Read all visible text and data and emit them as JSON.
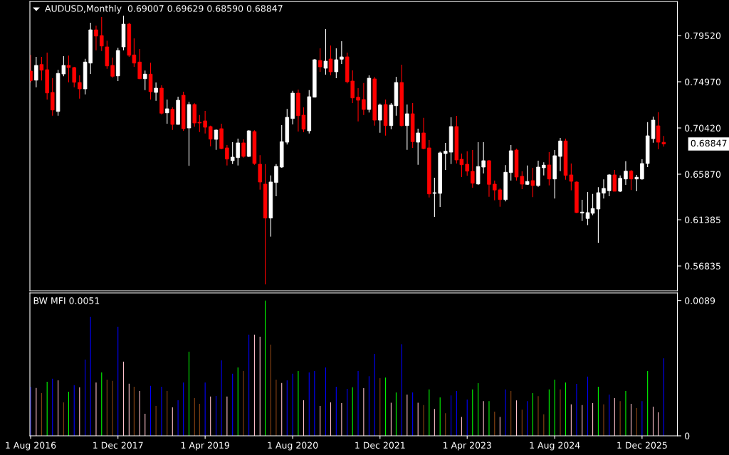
{
  "chart_data": [
    {
      "type": "candlestick",
      "title": "AUDUSD,Monthly  0.69007 0.69629 0.68590 0.68847",
      "x": [
        "2016-08",
        "2016-09",
        "2016-10",
        "2016-11",
        "2016-12",
        "2017-01",
        "2017-02",
        "2017-03",
        "2017-04",
        "2017-05",
        "2017-06",
        "2017-07",
        "2017-08",
        "2017-09",
        "2017-10",
        "2017-11",
        "2017-12",
        "2018-01",
        "2018-02",
        "2018-03",
        "2018-04",
        "2018-05",
        "2018-06",
        "2018-07",
        "2018-08",
        "2018-09",
        "2018-10",
        "2018-11",
        "2018-12",
        "2019-01",
        "2019-02",
        "2019-03",
        "2019-04",
        "2019-05",
        "2019-06",
        "2019-07",
        "2019-08",
        "2019-09",
        "2019-10",
        "2019-11",
        "2019-12",
        "2020-01",
        "2020-02",
        "2020-03",
        "2020-04",
        "2020-05",
        "2020-06",
        "2020-07",
        "2020-08",
        "2020-09",
        "2020-10",
        "2020-11",
        "2020-12",
        "2021-01",
        "2021-02",
        "2021-03",
        "2021-04",
        "2021-05",
        "2021-06",
        "2021-07",
        "2021-08",
        "2021-09",
        "2021-10",
        "2021-11",
        "2021-12",
        "2022-01",
        "2022-02",
        "2022-03",
        "2022-04",
        "2022-05",
        "2022-06",
        "2022-07",
        "2022-08",
        "2022-09",
        "2022-10",
        "2022-11",
        "2022-12",
        "2023-01",
        "2023-02",
        "2023-03",
        "2023-04",
        "2023-05",
        "2023-06",
        "2023-07",
        "2023-08",
        "2023-09",
        "2023-10",
        "2023-11",
        "2023-12",
        "2024-01",
        "2024-02",
        "2024-03",
        "2024-04",
        "2024-05",
        "2024-06",
        "2024-07",
        "2024-08",
        "2024-09",
        "2024-10",
        "2024-11",
        "2024-12",
        "2025-01",
        "2025-02",
        "2025-03",
        "2025-04",
        "2025-05",
        "2025-06",
        "2025-07",
        "2025-08",
        "2025-09",
        "2025-10",
        "2025-11",
        "2025-12",
        "2026-01",
        "2026-02",
        "2026-03",
        "2026-04"
      ],
      "ohlc": [
        [
          0.7602,
          0.7761,
          0.749,
          0.7509
        ],
        [
          0.7513,
          0.7742,
          0.7443,
          0.7658
        ],
        [
          0.7667,
          0.7742,
          0.7509,
          0.7611
        ],
        [
          0.7616,
          0.7784,
          0.7322,
          0.7387
        ],
        [
          0.7392,
          0.7532,
          0.7163,
          0.7219
        ],
        [
          0.7205,
          0.7614,
          0.7163,
          0.7579
        ],
        [
          0.7574,
          0.7749,
          0.7551,
          0.7658
        ],
        [
          0.7658,
          0.7754,
          0.7492,
          0.7637
        ],
        [
          0.7637,
          0.7644,
          0.7443,
          0.7492
        ],
        [
          0.749,
          0.756,
          0.7331,
          0.7427
        ],
        [
          0.7427,
          0.7723,
          0.7373,
          0.7691
        ],
        [
          0.7681,
          0.8078,
          0.7574,
          0.8008
        ],
        [
          0.8008,
          0.805,
          0.7807,
          0.7947
        ],
        [
          0.7952,
          0.8134,
          0.78,
          0.7849
        ],
        [
          0.784,
          0.7901,
          0.7625,
          0.7653
        ],
        [
          0.7658,
          0.7735,
          0.7537,
          0.7551
        ],
        [
          0.7555,
          0.7831,
          0.7504,
          0.7805
        ],
        [
          0.784,
          0.8148,
          0.7807,
          0.8064
        ],
        [
          0.8064,
          0.8078,
          0.7742,
          0.7758
        ],
        [
          0.7761,
          0.7924,
          0.7644,
          0.7681
        ],
        [
          0.7691,
          0.7819,
          0.7523,
          0.7527
        ],
        [
          0.7527,
          0.7607,
          0.7415,
          0.7572
        ],
        [
          0.7572,
          0.7684,
          0.7322,
          0.7399
        ],
        [
          0.7392,
          0.749,
          0.731,
          0.7434
        ],
        [
          0.7434,
          0.7462,
          0.7175,
          0.7187
        ],
        [
          0.7191,
          0.7322,
          0.7084,
          0.7231
        ],
        [
          0.7226,
          0.7245,
          0.7023,
          0.7077
        ],
        [
          0.7077,
          0.735,
          0.7075,
          0.7315
        ],
        [
          0.7364,
          0.7399,
          0.7014,
          0.7035
        ],
        [
          0.7042,
          0.7299,
          0.6669,
          0.7273
        ],
        [
          0.7273,
          0.7285,
          0.7054,
          0.7091
        ],
        [
          0.7098,
          0.717,
          0.7002,
          0.7091
        ],
        [
          0.7112,
          0.721,
          0.6988,
          0.7049
        ],
        [
          0.7056,
          0.7065,
          0.6862,
          0.6932
        ],
        [
          0.693,
          0.7028,
          0.6827,
          0.7021
        ],
        [
          0.7035,
          0.7084,
          0.6832,
          0.6839
        ],
        [
          0.6846,
          0.6874,
          0.6673,
          0.6736
        ],
        [
          0.672,
          0.6902,
          0.6687,
          0.6755
        ],
        [
          0.675,
          0.6937,
          0.6673,
          0.6895
        ],
        [
          0.6895,
          0.693,
          0.675,
          0.6762
        ],
        [
          0.6762,
          0.7019,
          0.6757,
          0.7014
        ],
        [
          0.7007,
          0.7019,
          0.668,
          0.6692
        ],
        [
          0.6685,
          0.6774,
          0.6435,
          0.651
        ],
        [
          0.6489,
          0.6687,
          0.5502,
          0.6155
        ],
        [
          0.6155,
          0.6575,
          0.5973,
          0.651
        ],
        [
          0.6505,
          0.6687,
          0.637,
          0.6664
        ],
        [
          0.6657,
          0.707,
          0.665,
          0.6907
        ],
        [
          0.6902,
          0.7229,
          0.6879,
          0.7147
        ],
        [
          0.7135,
          0.7408,
          0.7077,
          0.7385
        ],
        [
          0.7385,
          0.742,
          0.7007,
          0.7163
        ],
        [
          0.7168,
          0.7245,
          0.7,
          0.703
        ],
        [
          0.7014,
          0.7415,
          0.6988,
          0.735
        ],
        [
          0.7345,
          0.7719,
          0.7343,
          0.7714
        ],
        [
          0.7707,
          0.7826,
          0.7595,
          0.7644
        ],
        [
          0.763,
          0.8015,
          0.7567,
          0.77
        ],
        [
          0.7721,
          0.7854,
          0.756,
          0.7595
        ],
        [
          0.7595,
          0.7826,
          0.7532,
          0.7714
        ],
        [
          0.7719,
          0.7896,
          0.7672,
          0.7742
        ],
        [
          0.7742,
          0.7784,
          0.7481,
          0.7497
        ],
        [
          0.7504,
          0.7609,
          0.7287,
          0.7338
        ],
        [
          0.7345,
          0.7434,
          0.7107,
          0.7315
        ],
        [
          0.7322,
          0.7485,
          0.717,
          0.7224
        ],
        [
          0.7224,
          0.756,
          0.7194,
          0.7532
        ],
        [
          0.7525,
          0.7544,
          0.7065,
          0.7119
        ],
        [
          0.7119,
          0.7282,
          0.6995,
          0.7268
        ],
        [
          0.7273,
          0.7322,
          0.6967,
          0.7065
        ],
        [
          0.7065,
          0.7287,
          0.703,
          0.7268
        ],
        [
          0.7261,
          0.7546,
          0.7163,
          0.749
        ],
        [
          0.749,
          0.7665,
          0.7058,
          0.7065
        ],
        [
          0.7065,
          0.7273,
          0.6827,
          0.7182
        ],
        [
          0.7182,
          0.7287,
          0.6846,
          0.6907
        ],
        [
          0.6902,
          0.7035,
          0.668,
          0.6993
        ],
        [
          0.6993,
          0.7142,
          0.6832,
          0.6839
        ],
        [
          0.6846,
          0.6923,
          0.6358,
          0.6393
        ],
        [
          0.6398,
          0.6552,
          0.6167,
          0.6405
        ],
        [
          0.6398,
          0.6809,
          0.6265,
          0.6797
        ],
        [
          0.679,
          0.6895,
          0.6629,
          0.6813
        ],
        [
          0.6804,
          0.7147,
          0.6687,
          0.7056
        ],
        [
          0.7056,
          0.7161,
          0.6692,
          0.6727
        ],
        [
          0.6734,
          0.679,
          0.6559,
          0.668
        ],
        [
          0.6685,
          0.6813,
          0.6571,
          0.6617
        ],
        [
          0.6615,
          0.6825,
          0.6454,
          0.6498
        ],
        [
          0.6491,
          0.6902,
          0.6482,
          0.6662
        ],
        [
          0.6657,
          0.6902,
          0.6594,
          0.672
        ],
        [
          0.672,
          0.6725,
          0.6365,
          0.6487
        ],
        [
          0.6489,
          0.6524,
          0.633,
          0.6431
        ],
        [
          0.6433,
          0.6447,
          0.6267,
          0.6337
        ],
        [
          0.6337,
          0.6676,
          0.6319,
          0.6606
        ],
        [
          0.6603,
          0.6874,
          0.6524,
          0.6818
        ],
        [
          0.6825,
          0.6837,
          0.6524,
          0.6559
        ],
        [
          0.6566,
          0.6615,
          0.644,
          0.6489
        ],
        [
          0.6487,
          0.6673,
          0.6482,
          0.6515
        ],
        [
          0.6524,
          0.665,
          0.6361,
          0.6475
        ],
        [
          0.6475,
          0.672,
          0.6463,
          0.6657
        ],
        [
          0.665,
          0.6704,
          0.6575,
          0.6676
        ],
        [
          0.6678,
          0.6804,
          0.6477,
          0.654
        ],
        [
          0.654,
          0.6825,
          0.6347,
          0.6769
        ],
        [
          0.6762,
          0.6944,
          0.6617,
          0.6914
        ],
        [
          0.6914,
          0.6937,
          0.6533,
          0.6575
        ],
        [
          0.658,
          0.6692,
          0.6428,
          0.6517
        ],
        [
          0.651,
          0.6517,
          0.6202,
          0.6209
        ],
        [
          0.6204,
          0.6335,
          0.6127,
          0.6214
        ],
        [
          0.6151,
          0.6412,
          0.6085,
          0.6209
        ],
        [
          0.6202,
          0.6393,
          0.6183,
          0.6249
        ],
        [
          0.6244,
          0.6459,
          0.591,
          0.6405
        ],
        [
          0.64,
          0.6536,
          0.6347,
          0.6447
        ],
        [
          0.6424,
          0.6587,
          0.637,
          0.658
        ],
        [
          0.658,
          0.6629,
          0.6419,
          0.6419
        ],
        [
          0.6419,
          0.6575,
          0.6412,
          0.6547
        ],
        [
          0.654,
          0.6715,
          0.6482,
          0.6617
        ],
        [
          0.6617,
          0.6629,
          0.6431,
          0.654
        ],
        [
          0.654,
          0.658,
          0.6419,
          0.6557
        ],
        [
          0.654,
          0.6734,
          0.6533,
          0.6692
        ],
        [
          0.6692,
          0.71,
          0.6657,
          0.6965
        ],
        [
          0.6937,
          0.7154,
          0.6897,
          0.7119
        ],
        [
          0.7063,
          0.7198,
          0.6832,
          0.6902
        ],
        [
          0.69007,
          0.69629,
          0.6859,
          0.68847
        ]
      ],
      "colors": [
        "#ff0000",
        "#ffffff",
        "#ff0000",
        "#ff0000",
        "#ff0000",
        "#ffffff",
        "#ffffff",
        "#ff0000",
        "#ff0000",
        "#ff0000",
        "#ffffff",
        "#ffffff",
        "#ff0000",
        "#ff0000",
        "#ff0000",
        "#ff0000",
        "#ffffff",
        "#ffffff",
        "#ff0000",
        "#ff0000",
        "#ff0000",
        "#ffffff",
        "#ff0000",
        "#ffffff",
        "#ff0000",
        "#ffffff",
        "#ff0000",
        "#ffffff",
        "#ff0000",
        "#ffffff",
        "#ff0000",
        "#ff0000",
        "#ff0000",
        "#ff0000",
        "#ffffff",
        "#ff0000",
        "#ff0000",
        "#ffffff",
        "#ffffff",
        "#ff0000",
        "#ffffff",
        "#ff0000",
        "#ff0000",
        "#ff0000",
        "#ffffff",
        "#ffffff",
        "#ffffff",
        "#ffffff",
        "#ffffff",
        "#ff0000",
        "#ff0000",
        "#ffffff",
        "#ffffff",
        "#ff0000",
        "#ffffff",
        "#ff0000",
        "#ffffff",
        "#ffffff",
        "#ff0000",
        "#ff0000",
        "#ff0000",
        "#ff0000",
        "#ffffff",
        "#ff0000",
        "#ffffff",
        "#ff0000",
        "#ffffff",
        "#ffffff",
        "#ff0000",
        "#ffffff",
        "#ff0000",
        "#ffffff",
        "#ff0000",
        "#ff0000",
        "#ffffff",
        "#ffffff",
        "#ffffff",
        "#ffffff",
        "#ff0000",
        "#ff0000",
        "#ff0000",
        "#ff0000",
        "#ffffff",
        "#ffffff",
        "#ff0000",
        "#ff0000",
        "#ff0000",
        "#ffffff",
        "#ffffff",
        "#ff0000",
        "#ff0000",
        "#ffffff",
        "#ff0000",
        "#ffffff",
        "#ffffff",
        "#ff0000",
        "#ffffff",
        "#ffffff",
        "#ff0000",
        "#ff0000",
        "#ff0000",
        "#ffffff",
        "#ffffff",
        "#ffffff",
        "#ffffff",
        "#ffffff",
        "#ffffff",
        "#ff0000",
        "#ffffff",
        "#ffffff",
        "#ff0000",
        "#ffffff",
        "#ffffff",
        "#ffffff",
        "#ffffff",
        "#ff0000",
        "#ff0000"
      ],
      "xlim": [
        "2016-07-28",
        "2026-06-16"
      ],
      "ylim": [
        0.5439,
        0.8286
      ],
      "yticks": [
        {
          "value": 0.7952,
          "label": "0.79520"
        },
        {
          "value": 0.7497,
          "label": "0.74970"
        },
        {
          "value": 0.7042,
          "label": "0.70420"
        },
        {
          "value": 0.6587,
          "label": "0.65870"
        },
        0.61385,
        0.56835
      ],
      "tick_labels": "y",
      "annotations": [
        "0.68847"
      ]
    },
    {
      "type": "bar",
      "title": "BW MFI 0.0051",
      "x": [
        "2016-08",
        "2016-09",
        "2016-10",
        "2016-11",
        "2016-12",
        "2017-01",
        "2017-02",
        "2017-03",
        "2017-04",
        "2017-05",
        "2017-06",
        "2017-07",
        "2017-08",
        "2017-09",
        "2017-10",
        "2017-11",
        "2017-12",
        "2018-01",
        "2018-02",
        "2018-03",
        "2018-04",
        "2018-05",
        "2018-06",
        "2018-07",
        "2018-08",
        "2018-09",
        "2018-10",
        "2018-11",
        "2018-12",
        "2019-01",
        "2019-02",
        "2019-03",
        "2019-04",
        "2019-05",
        "2019-06",
        "2019-07",
        "2019-08",
        "2019-09",
        "2019-10",
        "2019-11",
        "2019-12",
        "2020-01",
        "2020-02",
        "2020-03",
        "2020-04",
        "2020-05",
        "2020-06",
        "2020-07",
        "2020-08",
        "2020-09",
        "2020-10",
        "2020-11",
        "2020-12",
        "2021-01",
        "2021-02",
        "2021-03",
        "2021-04",
        "2021-05",
        "2021-06",
        "2021-07",
        "2021-08",
        "2021-09",
        "2021-10",
        "2021-11",
        "2021-12",
        "2022-01",
        "2022-02",
        "2022-03",
        "2022-04",
        "2022-05",
        "2022-06",
        "2022-07",
        "2022-08",
        "2022-09",
        "2022-10",
        "2022-11",
        "2022-12",
        "2023-01",
        "2023-02",
        "2023-03",
        "2023-04",
        "2023-05",
        "2023-06",
        "2023-07",
        "2023-08",
        "2023-09",
        "2023-10",
        "2023-11",
        "2023-12",
        "2024-01",
        "2024-02",
        "2024-03",
        "2024-04",
        "2024-05",
        "2024-06",
        "2024-07",
        "2024-08",
        "2024-09",
        "2024-10",
        "2024-11",
        "2024-12",
        "2025-01",
        "2025-02",
        "2025-03",
        "2025-04",
        "2025-05",
        "2025-06",
        "2025-07",
        "2025-08",
        "2025-09",
        "2025-10",
        "2025-11",
        "2025-12",
        "2026-01",
        "2026-02",
        "2026-03",
        "2026-04"
      ],
      "values": [
        0.00322,
        0.00314,
        0.00281,
        0.00356,
        0.00375,
        0.00365,
        0.0022,
        0.0029,
        0.00333,
        0.00319,
        0.00501,
        0.00782,
        0.00351,
        0.00417,
        0.0037,
        0.00361,
        0.00717,
        0.00487,
        0.00342,
        0.00323,
        0.00295,
        0.00145,
        0.00328,
        0.00197,
        0.00323,
        0.00295,
        0.00187,
        0.00234,
        0.00351,
        0.00553,
        0.00248,
        0.00211,
        0.00351,
        0.00258,
        0.00262,
        0.00497,
        0.00258,
        0.00408,
        0.0045,
        0.00426,
        0.00665,
        0.00665,
        0.00651,
        0.0089,
        0.006,
        0.0037,
        0.00347,
        0.00365,
        0.00408,
        0.00426,
        0.00234,
        0.00417,
        0.00426,
        0.00197,
        0.0045,
        0.0022,
        0.00323,
        0.00215,
        0.00309,
        0.00319,
        0.00425,
        0.00313,
        0.00392,
        0.00538,
        0.00379,
        0.00384,
        0.00218,
        0.00285,
        0.00602,
        0.00271,
        0.00285,
        0.00218,
        0.00202,
        0.00305,
        0.00177,
        0.00252,
        0.00149,
        0.00265,
        0.00295,
        0.00124,
        0.00238,
        0.00305,
        0.00346,
        0.00228,
        0.00228,
        0.00159,
        0.00124,
        0.00305,
        0.00295,
        0.00233,
        0.00172,
        0.00228,
        0.00281,
        0.00261,
        0.00141,
        0.00305,
        0.00369,
        0.00305,
        0.00351,
        0.00207,
        0.00341,
        0.00202,
        0.00389,
        0.00215,
        0.00323,
        0.00207,
        0.00271,
        0.00248,
        0.00228,
        0.00295,
        0.0021,
        0.00182,
        0.00228,
        0.00425,
        0.00192,
        0.00154,
        0.0051
      ],
      "colors": [
        "#0000ff",
        "#ffc0cb",
        "#8b4513",
        "#00ff00",
        "#0000ff",
        "#ffc0cb",
        "#8b4513",
        "#00ff00",
        "#0000ff",
        "#ffc0cb",
        "#0000ff",
        "#0000ff",
        "#ffc0cb",
        "#00ff00",
        "#8b4513",
        "#8b4513",
        "#0000ff",
        "#ffc0cb",
        "#ffc0cb",
        "#8b4513",
        "#ffc0cb",
        "#ffc0cb",
        "#0000ff",
        "#8b4513",
        "#0000ff",
        "#8b4513",
        "#ffc0cb",
        "#0000ff",
        "#0000ff",
        "#00ff00",
        "#8b4513",
        "#8b4513",
        "#0000ff",
        "#ffc0cb",
        "#0000ff",
        "#0000ff",
        "#ffc0cb",
        "#0000ff",
        "#00ff00",
        "#8b4513",
        "#0000ff",
        "#ffc0cb",
        "#ffc0cb",
        "#00ff00",
        "#8b4513",
        "#8b4513",
        "#ffc0cb",
        "#0000ff",
        "#0000ff",
        "#00ff00",
        "#ffc0cb",
        "#0000ff",
        "#0000ff",
        "#ffc0cb",
        "#0000ff",
        "#ffc0cb",
        "#0000ff",
        "#ffc0cb",
        "#0000ff",
        "#00ff00",
        "#0000ff",
        "#ffc0cb",
        "#0000ff",
        "#0000ff",
        "#8b4513",
        "#00ff00",
        "#ffc0cb",
        "#00ff00",
        "#0000ff",
        "#ffc0cb",
        "#0000ff",
        "#ffc0cb",
        "#8b4513",
        "#00ff00",
        "#ffc0cb",
        "#00ff00",
        "#8b4513",
        "#0000ff",
        "#0000ff",
        "#ffc0cb",
        "#0000ff",
        "#00ff00",
        "#00ff00",
        "#ffc0cb",
        "#00ff00",
        "#8b4513",
        "#ffc0cb",
        "#0000ff",
        "#8b4513",
        "#ffc0cb",
        "#8b4513",
        "#0000ff",
        "#00ff00",
        "#8b4513",
        "#8b4513",
        "#00ff00",
        "#00ff00",
        "#8b4513",
        "#00ff00",
        "#ffc0cb",
        "#0000ff",
        "#ffc0cb",
        "#0000ff",
        "#ffc0cb",
        "#00ff00",
        "#8b4513",
        "#0000ff",
        "#ffc0cb",
        "#8b4513",
        "#00ff00",
        "#ffc0cb",
        "#8b4513",
        "#0000ff",
        "#00ff00",
        "#ffc0cb",
        "#ffc0cb",
        "#0000ff"
      ],
      "xlim": [
        "2016-07-28",
        "2026-06-16"
      ],
      "xticks": [
        {
          "value": "2016-08",
          "label": "1 Aug 2016"
        },
        {
          "value": "2017-12",
          "label": "1 Dec 2017"
        },
        {
          "value": "2019-04",
          "label": "1 Apr 2019"
        },
        {
          "value": "2020-08",
          "label": "1 Aug 2020"
        },
        {
          "value": "2021-12",
          "label": "1 Dec 2021"
        },
        {
          "value": "2023-04",
          "label": "1 Apr 2023"
        },
        {
          "value": "2024-08",
          "label": "1 Aug 2024"
        },
        {
          "value": "2025-12",
          "label": "1 Dec 2025"
        }
      ],
      "ylim": [
        0,
        0.0094
      ],
      "yticks": [
        0,
        0.0089
      ]
    }
  ]
}
